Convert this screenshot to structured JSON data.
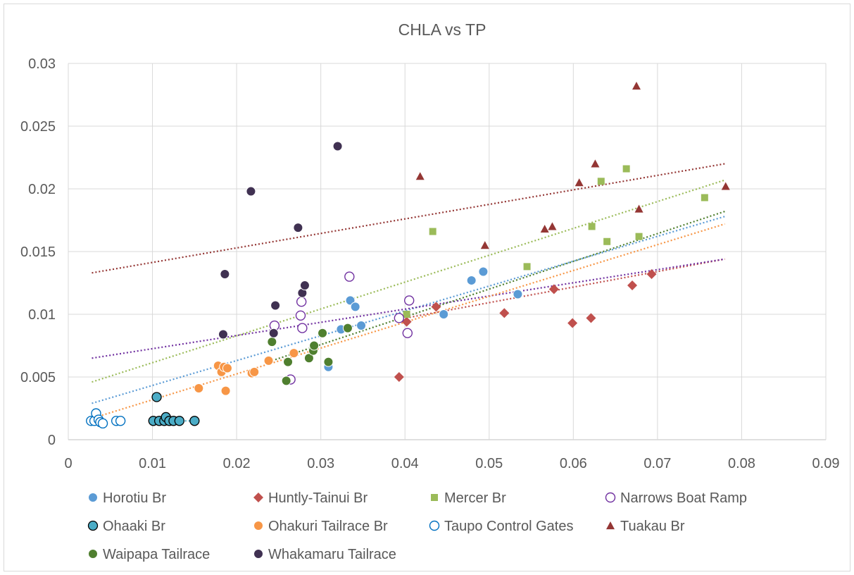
{
  "chart_data": {
    "type": "scatter",
    "title": "CHLA vs TP",
    "xlabel": "",
    "ylabel": "",
    "xlim": [
      0,
      0.09
    ],
    "ylim": [
      0,
      0.03
    ],
    "x_ticks": [
      "0",
      "0.01",
      "0.02",
      "0.03",
      "0.04",
      "0.05",
      "0.06",
      "0.07",
      "0.08",
      "0.09"
    ],
    "y_ticks": [
      "0",
      "0.005",
      "0.01",
      "0.015",
      "0.02",
      "0.025",
      "0.03"
    ],
    "grid": true,
    "legend_position": "bottom",
    "trendlines": "linear, dotted, one per series",
    "series": [
      {
        "name": "Horotiu Br",
        "color": "#5b9bd5",
        "marker": "circle",
        "points": [
          [
            0.0309,
            0.0058
          ],
          [
            0.0324,
            0.0088
          ],
          [
            0.0335,
            0.0111
          ],
          [
            0.0341,
            0.0106
          ],
          [
            0.0348,
            0.0091
          ],
          [
            0.0446,
            0.01
          ],
          [
            0.0479,
            0.0127
          ],
          [
            0.0493,
            0.0134
          ],
          [
            0.0534,
            0.0116
          ]
        ],
        "trend": [
          [
            0.0028,
            0.0029
          ],
          [
            0.078,
            0.0178
          ]
        ]
      },
      {
        "name": "Huntly-Tainui Br",
        "color": "#c0504d",
        "marker": "diamond",
        "points": [
          [
            0.0393,
            0.005
          ],
          [
            0.0402,
            0.0094
          ],
          [
            0.0437,
            0.0106
          ],
          [
            0.0518,
            0.0101
          ],
          [
            0.0577,
            0.012
          ],
          [
            0.0599,
            0.0093
          ],
          [
            0.0621,
            0.0097
          ],
          [
            0.067,
            0.0123
          ],
          [
            0.0693,
            0.0132
          ]
        ],
        "trend": [
          [
            0.0393,
            0.0096
          ],
          [
            0.078,
            0.0144
          ]
        ]
      },
      {
        "name": "Mercer Br",
        "color": "#9bbb59",
        "marker": "square",
        "points": [
          [
            0.0402,
            0.01
          ],
          [
            0.0433,
            0.0166
          ],
          [
            0.0545,
            0.0138
          ],
          [
            0.0622,
            0.017
          ],
          [
            0.0633,
            0.0206
          ],
          [
            0.064,
            0.0158
          ],
          [
            0.0663,
            0.0216
          ],
          [
            0.0678,
            0.0162
          ],
          [
            0.0756,
            0.0193
          ]
        ],
        "trend": [
          [
            0.0028,
            0.0046
          ],
          [
            0.078,
            0.0207
          ]
        ]
      },
      {
        "name": "Narrows Boat Ramp",
        "color": "#7030a0",
        "marker": "circle-open",
        "points": [
          [
            0.0245,
            0.0091
          ],
          [
            0.0264,
            0.0048
          ],
          [
            0.0276,
            0.0099
          ],
          [
            0.0277,
            0.011
          ],
          [
            0.0278,
            0.0089
          ],
          [
            0.0334,
            0.013
          ],
          [
            0.0393,
            0.0097
          ],
          [
            0.0403,
            0.0085
          ],
          [
            0.0405,
            0.0111
          ]
        ],
        "trend": [
          [
            0.0028,
            0.0065
          ],
          [
            0.078,
            0.0144
          ]
        ]
      },
      {
        "name": "Ohaaki Br",
        "color": "#4bacc6",
        "marker": "circle-outlined",
        "points": [
          [
            0.0101,
            0.0015
          ],
          [
            0.0105,
            0.0034
          ],
          [
            0.0108,
            0.0015
          ],
          [
            0.0114,
            0.0015
          ],
          [
            0.0116,
            0.0018
          ],
          [
            0.012,
            0.0015
          ],
          [
            0.0125,
            0.0015
          ],
          [
            0.0132,
            0.0015
          ],
          [
            0.015,
            0.0015
          ]
        ],
        "trend": [
          [
            0.0101,
            0.0015
          ],
          [
            0.015,
            0.0015
          ]
        ]
      },
      {
        "name": "Ohakuri Tailrace Br",
        "color": "#f79646",
        "marker": "circle",
        "points": [
          [
            0.0155,
            0.0041
          ],
          [
            0.0178,
            0.0059
          ],
          [
            0.0182,
            0.0054
          ],
          [
            0.0185,
            0.0058
          ],
          [
            0.0187,
            0.0039
          ],
          [
            0.0189,
            0.0057
          ],
          [
            0.0218,
            0.0053
          ],
          [
            0.0221,
            0.0054
          ],
          [
            0.0238,
            0.0063
          ],
          [
            0.0268,
            0.0069
          ]
        ],
        "trend": [
          [
            0.0028,
            0.0017
          ],
          [
            0.078,
            0.0172
          ]
        ]
      },
      {
        "name": "Taupo Control Gates",
        "color": "#0070c0",
        "marker": "circle-open",
        "points": [
          [
            0.0027,
            0.0015
          ],
          [
            0.0031,
            0.0015
          ],
          [
            0.0033,
            0.0021
          ],
          [
            0.0036,
            0.0016
          ],
          [
            0.0038,
            0.0014
          ],
          [
            0.0041,
            0.0013
          ],
          [
            0.0057,
            0.0015
          ],
          [
            0.0062,
            0.0015
          ]
        ],
        "trend": null
      },
      {
        "name": "Tuakau Br",
        "color": "#943634",
        "marker": "triangle",
        "points": [
          [
            0.0418,
            0.021
          ],
          [
            0.0495,
            0.0155
          ],
          [
            0.0566,
            0.0168
          ],
          [
            0.0575,
            0.017
          ],
          [
            0.0607,
            0.0205
          ],
          [
            0.0626,
            0.022
          ],
          [
            0.0675,
            0.0282
          ],
          [
            0.0678,
            0.0184
          ],
          [
            0.0781,
            0.0202
          ]
        ],
        "trend": [
          [
            0.0028,
            0.0133
          ],
          [
            0.078,
            0.022
          ]
        ]
      },
      {
        "name": "Waipapa Tailrace",
        "color": "#4f7f2f",
        "marker": "circle",
        "points": [
          [
            0.0242,
            0.0078
          ],
          [
            0.0259,
            0.0047
          ],
          [
            0.0261,
            0.0062
          ],
          [
            0.0286,
            0.0065
          ],
          [
            0.0291,
            0.0071
          ],
          [
            0.0292,
            0.0075
          ],
          [
            0.0302,
            0.0085
          ],
          [
            0.0309,
            0.0062
          ],
          [
            0.0332,
            0.0089
          ]
        ],
        "trend": [
          [
            0.0242,
            0.0063
          ],
          [
            0.078,
            0.0182
          ]
        ]
      },
      {
        "name": "Whakamaru Tailrace",
        "color": "#403152",
        "marker": "circle",
        "points": [
          [
            0.0184,
            0.0084
          ],
          [
            0.0186,
            0.0132
          ],
          [
            0.0217,
            0.0198
          ],
          [
            0.0244,
            0.0085
          ],
          [
            0.0246,
            0.0107
          ],
          [
            0.0273,
            0.0169
          ],
          [
            0.0278,
            0.0117
          ],
          [
            0.0281,
            0.0123
          ],
          [
            0.032,
            0.0234
          ]
        ],
        "trend": null
      }
    ]
  }
}
